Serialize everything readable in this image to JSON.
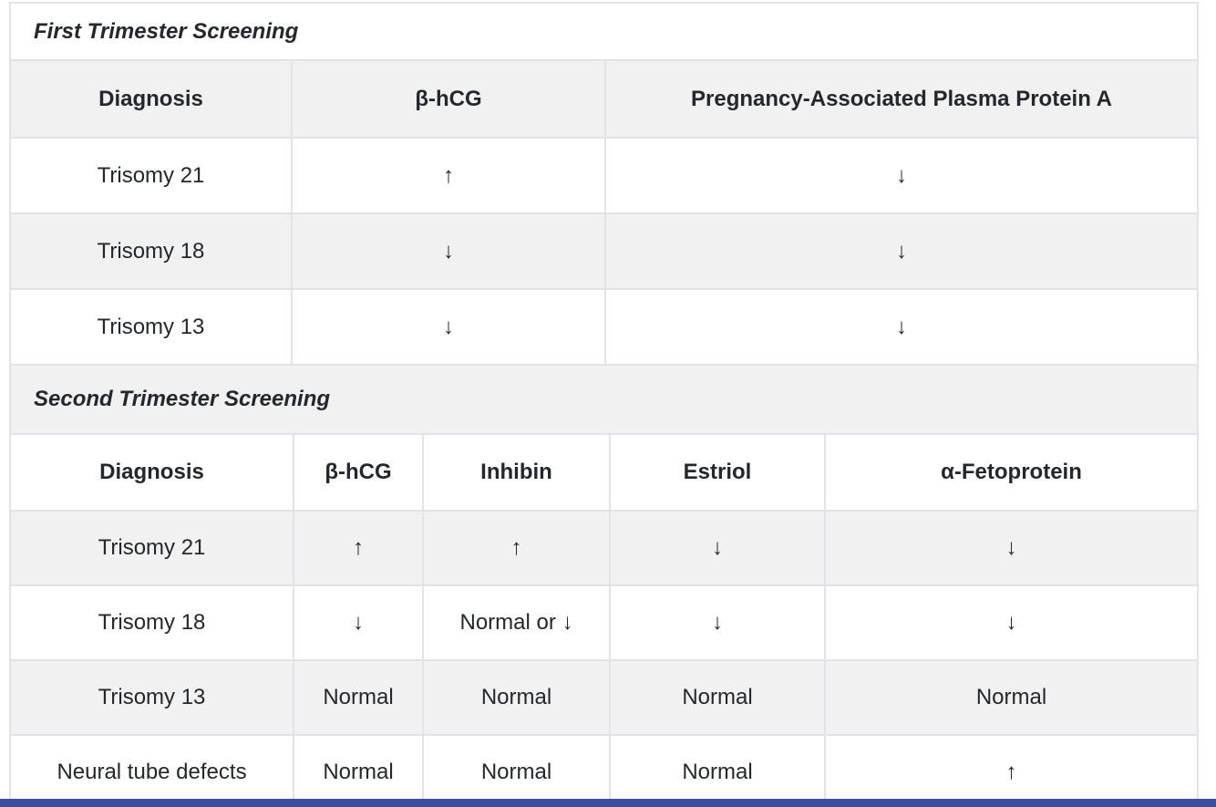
{
  "theme": {
    "accent_bar_color": "#3b4f9e",
    "stripe_color": "#f1f1f2",
    "border_color": "#e1e3e7",
    "text_color": "#24272b"
  },
  "tables": [
    {
      "caption": "First Trimester Screening",
      "columns": [
        "Diagnosis",
        "β-hCG",
        "Pregnancy-Associated Plasma Protein A"
      ],
      "rows": [
        [
          "Trisomy 21",
          "↑",
          "↓"
        ],
        [
          "Trisomy 18",
          "↓",
          "↓"
        ],
        [
          "Trisomy 13",
          "↓",
          "↓"
        ]
      ]
    },
    {
      "caption": "Second Trimester Screening",
      "columns": [
        "Diagnosis",
        "β-hCG",
        "Inhibin",
        "Estriol",
        "α-Fetoprotein"
      ],
      "rows": [
        [
          "Trisomy 21",
          "↑",
          "↑",
          "↓",
          "↓"
        ],
        [
          "Trisomy 18",
          "↓",
          "Normal or ↓",
          "↓",
          "↓"
        ],
        [
          "Trisomy 13",
          "Normal",
          "Normal",
          "Normal",
          "Normal"
        ],
        [
          "Neural tube defects",
          "Normal",
          "Normal",
          "Normal",
          "↑"
        ]
      ]
    }
  ]
}
